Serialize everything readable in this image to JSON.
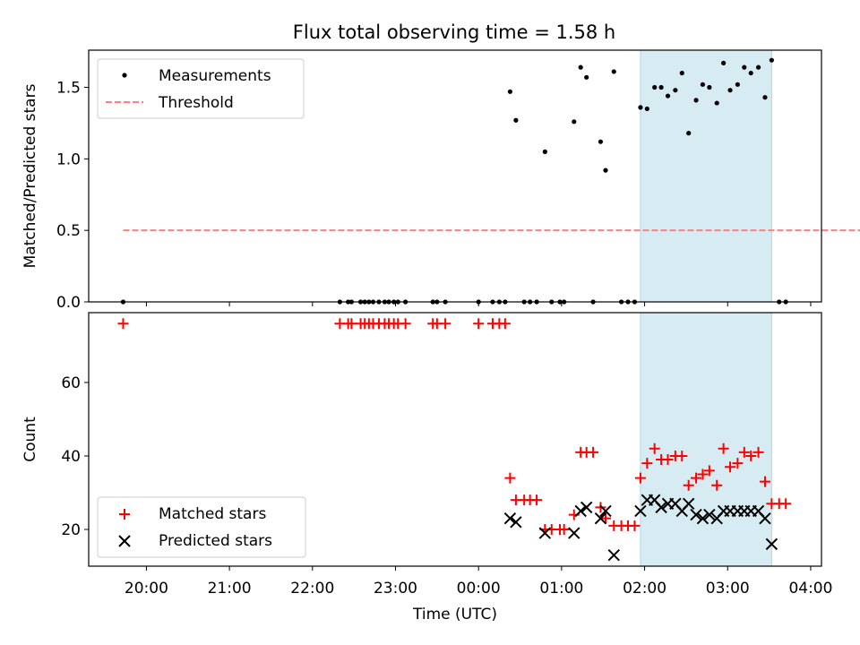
{
  "title": "Flux total observing time = 1.58 h",
  "colors": {
    "measurement": "#000000",
    "threshold": "#ff7f7f",
    "matched": "#ff0000",
    "predicted": "#000000",
    "highlight": "#add8e6"
  },
  "x_axis": {
    "label": "Time (UTC)",
    "ticks": [
      "20:00",
      "21:00",
      "22:00",
      "23:00",
      "00:00",
      "01:00",
      "02:00",
      "03:00",
      "04:00"
    ],
    "tick_hours": [
      20,
      21,
      22,
      23,
      24,
      25,
      26,
      27,
      28
    ],
    "range_hours": [
      19.305,
      28.13
    ]
  },
  "highlight_span_hours": [
    25.95,
    27.53
  ],
  "chart_data": [
    {
      "type": "scatter",
      "panel": "top",
      "title": "Flux total observing time = 1.58 h",
      "ylabel": "Matched/Predicted stars",
      "ylim": [
        0,
        1.76
      ],
      "yticks": [
        0.0,
        0.5,
        1.0,
        1.5
      ],
      "ytick_labels": [
        "0.0",
        "0.5",
        "1.0",
        "1.5"
      ],
      "legend": {
        "placement": "top-left",
        "entries": [
          "Measurements",
          "Threshold"
        ]
      },
      "threshold": {
        "name": "Threshold",
        "y": 0.5,
        "x_range_hours": [
          19.72,
          28.65
        ]
      },
      "series": [
        {
          "name": "Measurements",
          "marker": "dot",
          "x_hours": [
            19.72,
            22.33,
            22.43,
            22.47,
            22.58,
            22.63,
            22.68,
            22.73,
            22.8,
            22.87,
            22.92,
            22.98,
            23.03,
            23.12,
            23.45,
            23.5,
            23.6,
            24.0,
            24.17,
            24.25,
            24.32,
            24.38,
            24.45,
            24.55,
            24.62,
            24.7,
            24.8,
            24.88,
            24.98,
            25.03,
            25.15,
            25.23,
            25.3,
            25.38,
            25.47,
            25.53,
            25.63,
            25.72,
            25.8,
            25.88,
            25.95,
            26.03,
            26.12,
            26.2,
            26.28,
            26.37,
            26.45,
            26.53,
            26.62,
            26.7,
            26.78,
            26.87,
            26.95,
            27.03,
            27.12,
            27.2,
            27.28,
            27.37,
            27.45,
            27.53,
            27.62,
            27.7
          ],
          "y": [
            0,
            0,
            0,
            0,
            0,
            0,
            0,
            0,
            0,
            0,
            0,
            0,
            0,
            0,
            0,
            0,
            0,
            0,
            0,
            0,
            0,
            1.47,
            1.27,
            0,
            0,
            0,
            1.05,
            0,
            0,
            0,
            1.26,
            1.64,
            1.57,
            0,
            1.12,
            0.92,
            1.61,
            0,
            0,
            0,
            1.36,
            1.35,
            1.5,
            1.5,
            1.44,
            1.48,
            1.6,
            1.18,
            1.41,
            1.52,
            1.5,
            1.39,
            1.67,
            1.48,
            1.52,
            1.64,
            1.6,
            1.64,
            1.43,
            1.69,
            0,
            0
          ]
        }
      ]
    },
    {
      "type": "scatter",
      "panel": "bottom",
      "xlabel": "Time (UTC)",
      "ylabel": "Count",
      "ylim": [
        10,
        79
      ],
      "yticks": [
        20,
        40,
        60
      ],
      "ytick_labels": [
        "20",
        "40",
        "60"
      ],
      "legend": {
        "placement": "bottom-left",
        "entries": [
          "Matched stars",
          "Predicted stars"
        ]
      },
      "series": [
        {
          "name": "Matched stars",
          "marker": "plus",
          "x_hours": [
            19.72,
            22.33,
            22.43,
            22.47,
            22.58,
            22.63,
            22.68,
            22.73,
            22.8,
            22.87,
            22.92,
            22.98,
            23.03,
            23.12,
            23.45,
            23.5,
            23.6,
            24.0,
            24.17,
            24.25,
            24.32,
            24.38,
            24.45,
            24.55,
            24.62,
            24.7,
            24.8,
            24.88,
            24.98,
            25.03,
            25.15,
            25.23,
            25.3,
            25.38,
            25.47,
            25.53,
            25.63,
            25.72,
            25.8,
            25.88,
            25.95,
            26.03,
            26.12,
            26.2,
            26.28,
            26.37,
            26.45,
            26.53,
            26.62,
            26.7,
            26.78,
            26.87,
            26.95,
            27.03,
            27.12,
            27.2,
            27.28,
            27.37,
            27.45,
            27.53,
            27.62,
            27.7
          ],
          "y": [
            76,
            76,
            76,
            76,
            76,
            76,
            76,
            76,
            76,
            76,
            76,
            76,
            76,
            76,
            76,
            76,
            76,
            76,
            76,
            76,
            76,
            34,
            28,
            28,
            28,
            28,
            20,
            20,
            20,
            20,
            24,
            41,
            41,
            41,
            26,
            23,
            21,
            21,
            21,
            21,
            34,
            38,
            42,
            39,
            39,
            40,
            40,
            32,
            34,
            35,
            36,
            32,
            42,
            37,
            38,
            41,
            40,
            41,
            33,
            27,
            27,
            27
          ]
        },
        {
          "name": "Predicted stars",
          "marker": "x",
          "x_hours": [
            24.38,
            24.45,
            24.8,
            25.15,
            25.23,
            25.3,
            25.47,
            25.53,
            25.63,
            25.95,
            26.03,
            26.12,
            26.2,
            26.28,
            26.37,
            26.45,
            26.53,
            26.62,
            26.7,
            26.78,
            26.87,
            26.95,
            27.03,
            27.12,
            27.2,
            27.28,
            27.37,
            27.45,
            27.53
          ],
          "y": [
            23,
            22,
            19,
            19,
            25,
            26,
            23,
            25,
            13,
            25,
            28,
            28,
            26,
            27,
            27,
            25,
            27,
            24,
            23,
            24,
            23,
            25,
            25,
            25,
            25,
            25,
            25,
            23,
            16
          ]
        }
      ]
    }
  ]
}
